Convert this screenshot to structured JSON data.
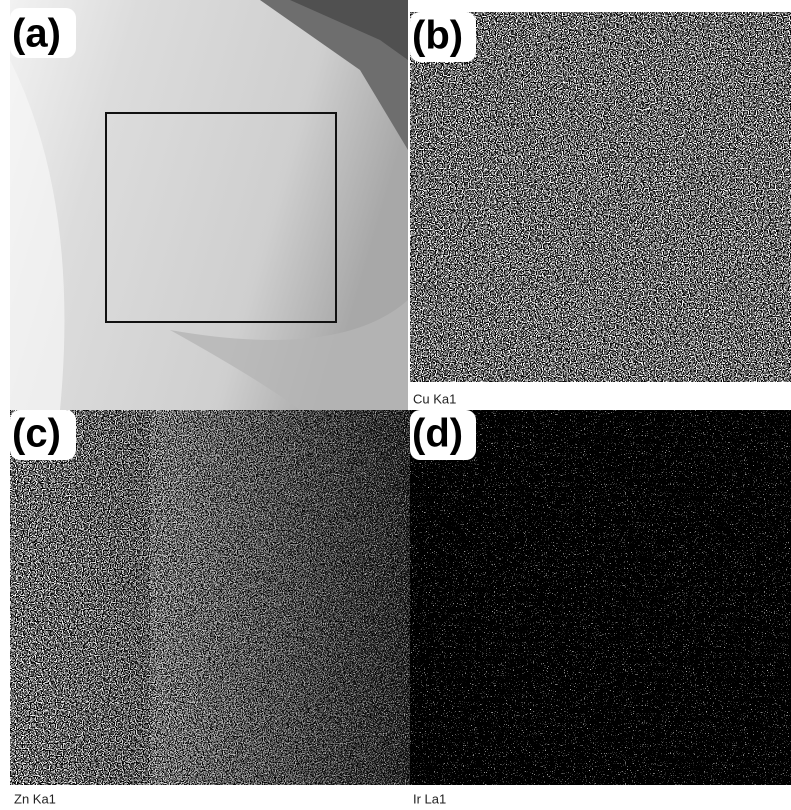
{
  "panels": [
    {
      "label": "(a)"
    },
    {
      "label": "(b)",
      "caption": "Cu Ka1"
    },
    {
      "label": "(c)",
      "caption": "Zn Ka1"
    },
    {
      "label": "(d)",
      "caption": "Ir La1"
    }
  ]
}
